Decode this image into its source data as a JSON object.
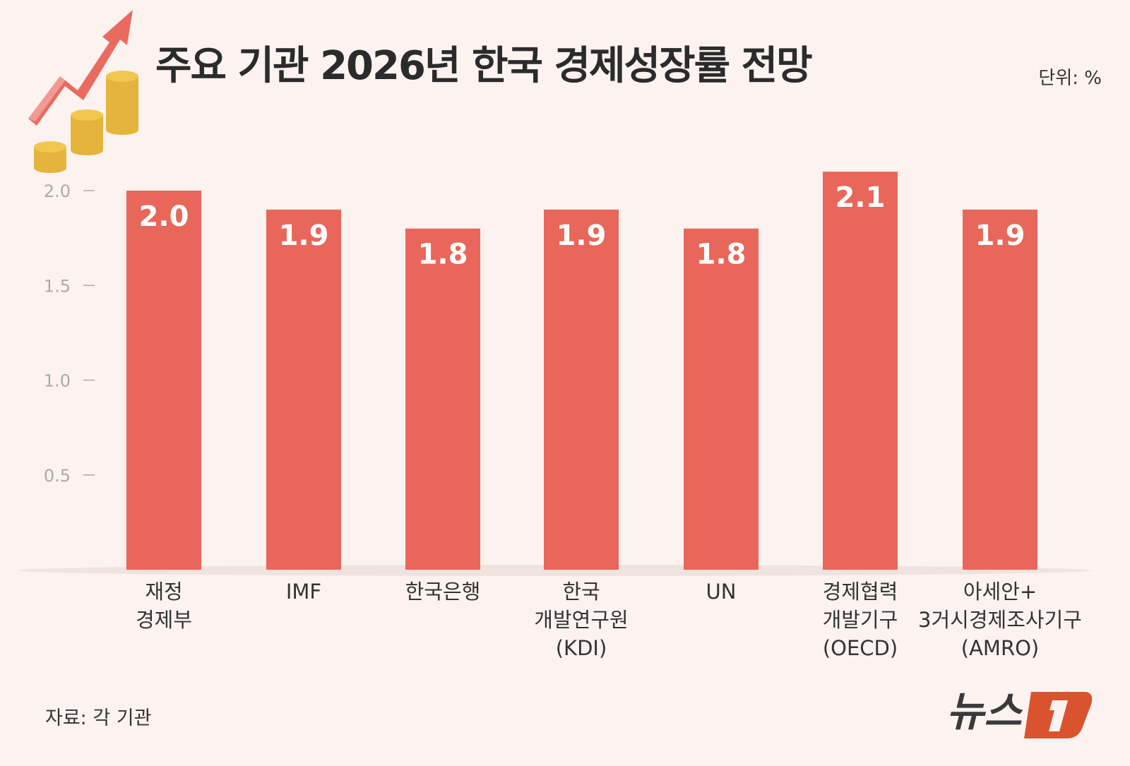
{
  "title": "주요 기관 2026년 한국 경제성장률 전망",
  "unit": "단위: %",
  "source": "자료: 각 기관",
  "logo": "뉴스1",
  "colors": {
    "bar": "#e8675a",
    "background": "#fcf3f0",
    "logo_accent": "#d9532f"
  },
  "icons": [
    "rising-arrow-icon",
    "coin-stacks-icon"
  ],
  "chart_data": {
    "type": "bar",
    "categories": [
      [
        "재정",
        "경제부"
      ],
      [
        "IMF"
      ],
      [
        "한국은행"
      ],
      [
        "한국",
        "개발연구원",
        "(KDI)"
      ],
      [
        "UN"
      ],
      [
        "경제협력",
        "개발기구",
        "(OECD)"
      ],
      [
        "아세안+",
        "3거시경제조사기구",
        "(AMRO)"
      ]
    ],
    "values": [
      2.0,
      1.9,
      1.8,
      1.9,
      1.8,
      2.1,
      1.9
    ],
    "value_labels": [
      "2.0",
      "1.9",
      "1.8",
      "1.9",
      "1.8",
      "2.1",
      "1.9"
    ],
    "yticks": [
      "0.5",
      "1.0",
      "1.5",
      "2.0"
    ],
    "ylim": [
      0,
      2.1
    ],
    "grid": false,
    "legend": "none"
  }
}
